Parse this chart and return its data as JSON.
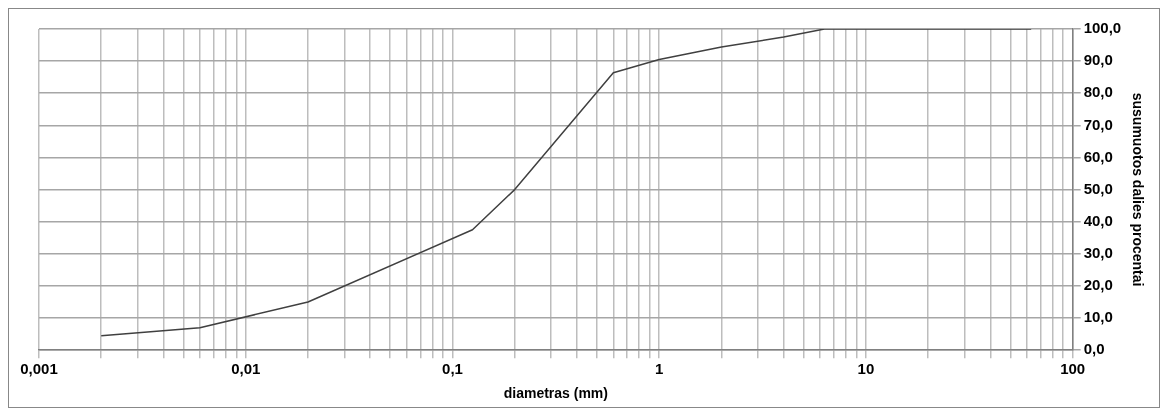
{
  "chart_data": {
    "type": "line",
    "xlabel": "diametras (mm)",
    "ylabel": "susumuotos dalies procentai",
    "log": "x",
    "grid": true,
    "marker": "none",
    "line_style": "solid",
    "legend": false,
    "x": [
      0.002,
      0.006,
      0.02,
      0.125,
      0.2,
      0.6,
      1,
      2,
      4,
      6.3,
      63
    ],
    "series": [
      {
        "color": "#404040",
        "values": [
          4.5,
          7,
          15,
          37.5,
          50,
          86.4,
          90.5,
          94.4,
          97.5,
          100,
          100
        ]
      }
    ],
    "xlim": [
      0.001,
      100
    ],
    "xticks": [
      {
        "value": 0.001,
        "label": "0,001"
      },
      {
        "value": 0.002,
        "label": null
      },
      {
        "value": 0.003,
        "label": null
      },
      {
        "value": 0.004,
        "label": null
      },
      {
        "value": 0.005,
        "label": null
      },
      {
        "value": 0.006,
        "label": null
      },
      {
        "value": 0.007,
        "label": null
      },
      {
        "value": 0.008,
        "label": null
      },
      {
        "value": 0.009,
        "label": null
      },
      {
        "value": 0.01,
        "label": "0,01"
      },
      {
        "value": 0.02,
        "label": null
      },
      {
        "value": 0.03,
        "label": null
      },
      {
        "value": 0.04,
        "label": null
      },
      {
        "value": 0.05,
        "label": null
      },
      {
        "value": 0.06,
        "label": null
      },
      {
        "value": 0.07,
        "label": null
      },
      {
        "value": 0.08,
        "label": null
      },
      {
        "value": 0.09,
        "label": null
      },
      {
        "value": 0.1,
        "label": "0,1"
      },
      {
        "value": 0.2,
        "label": null
      },
      {
        "value": 0.3,
        "label": null
      },
      {
        "value": 0.4,
        "label": null
      },
      {
        "value": 0.5,
        "label": null
      },
      {
        "value": 0.6,
        "label": null
      },
      {
        "value": 0.7,
        "label": null
      },
      {
        "value": 0.8,
        "label": null
      },
      {
        "value": 0.9,
        "label": null
      },
      1,
      {
        "value": 2,
        "label": null
      },
      {
        "value": 3,
        "label": null
      },
      {
        "value": 4,
        "label": null
      },
      {
        "value": 5,
        "label": null
      },
      {
        "value": 6,
        "label": null
      },
      {
        "value": 7,
        "label": null
      },
      {
        "value": 8,
        "label": null
      },
      {
        "value": 9,
        "label": null
      },
      10,
      {
        "value": 20,
        "label": null
      },
      {
        "value": 30,
        "label": null
      },
      {
        "value": 40,
        "label": null
      },
      {
        "value": 50,
        "label": null
      },
      {
        "value": 60,
        "label": null
      },
      {
        "value": 70,
        "label": null
      },
      {
        "value": 80,
        "label": null
      },
      {
        "value": 90,
        "label": null
      },
      100
    ],
    "ylim": [
      0,
      100
    ],
    "yticks": [
      {
        "value": 0,
        "label": "0,0"
      },
      {
        "value": 10,
        "label": "10,0"
      },
      {
        "value": 20,
        "label": "20,0"
      },
      {
        "value": 30,
        "label": "30,0"
      },
      {
        "value": 40,
        "label": "40,0"
      },
      {
        "value": 50,
        "label": "50,0"
      },
      {
        "value": 60,
        "label": "60,0"
      },
      {
        "value": 70,
        "label": "70,0"
      },
      {
        "value": 80,
        "label": "80,0"
      },
      {
        "value": 90,
        "label": "90,0"
      },
      {
        "value": 100,
        "label": "100,0"
      }
    ]
  }
}
